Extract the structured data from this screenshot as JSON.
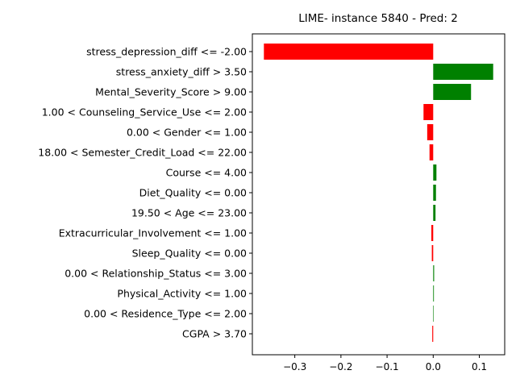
{
  "chart_data": {
    "type": "bar",
    "orientation": "horizontal",
    "title": "LIME- instance 5840 - Pred: 2",
    "xlabel": "",
    "ylabel": "",
    "xlim": [
      -0.392,
      0.155
    ],
    "xticks": [
      -0.3,
      -0.2,
      -0.1,
      0.0,
      0.1
    ],
    "xtick_labels": [
      "−0.3",
      "−0.2",
      "−0.1",
      "0.0",
      "0.1"
    ],
    "grid": false,
    "colors": {
      "positive": "#008000",
      "negative": "#ff0000"
    },
    "categories": [
      "stress_depression_diff <= -2.00",
      "stress_anxiety_diff > 3.50",
      "Mental_Severity_Score > 9.00",
      "1.00 < Counseling_Service_Use <= 2.00",
      "0.00 < Gender <= 1.00",
      "18.00 < Semester_Credit_Load <= 22.00",
      "Course <= 4.00",
      "Diet_Quality <= 0.00",
      "19.50 < Age <= 23.00",
      "Extracurricular_Involvement <= 1.00",
      "Sleep_Quality <= 0.00",
      "0.00 < Relationship_Status <= 3.00",
      "Physical_Activity <= 1.00",
      "0.00 < Residence_Type <= 2.00",
      "CGPA > 3.70"
    ],
    "values": [
      -0.367,
      0.13,
      0.082,
      -0.021,
      -0.013,
      -0.008,
      0.007,
      0.006,
      0.005,
      -0.004,
      -0.003,
      0.002,
      0.0015,
      0.0003,
      -0.002
    ]
  }
}
